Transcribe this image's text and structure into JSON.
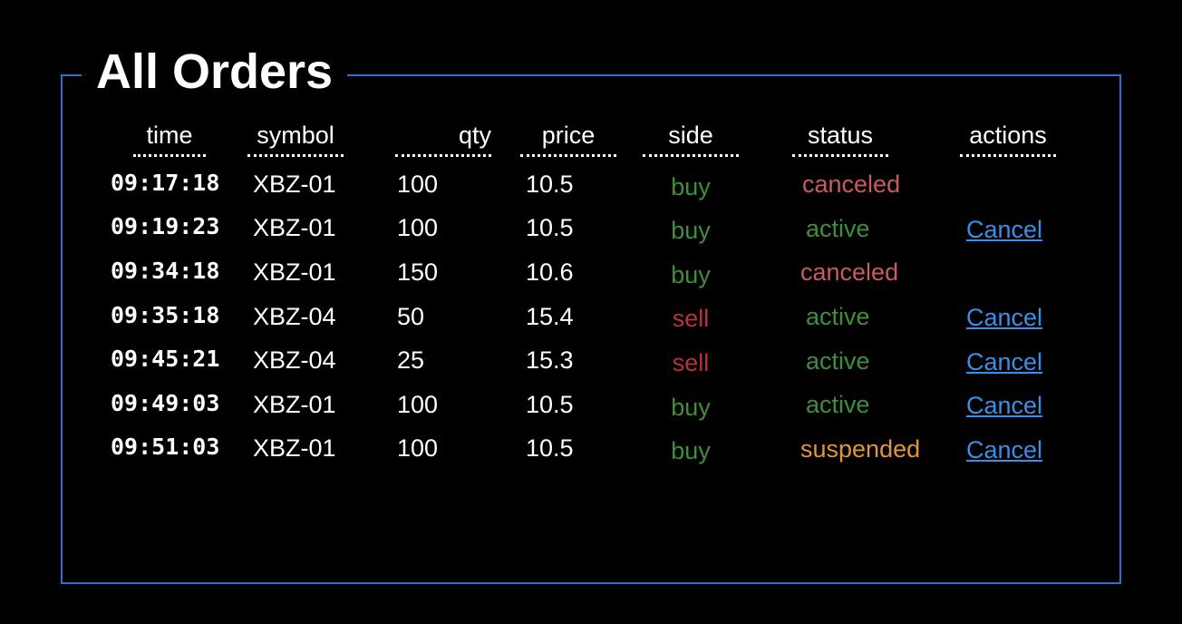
{
  "panel": {
    "title": "All Orders"
  },
  "colors": {
    "border": "#2f6fd0",
    "buy": "#3f8f3a",
    "sell": "#b8323a",
    "canceled": "#c95a5f",
    "active": "#3f8f3a",
    "suspended": "#e0953a",
    "link": "#3b8ee8"
  },
  "table": {
    "columns": [
      "time",
      "symbol",
      "qty",
      "price",
      "side",
      "status",
      "actions"
    ],
    "rows": [
      {
        "time": "09:17:18",
        "symbol": "XBZ-01",
        "qty": "100",
        "price": "10.5",
        "side": "buy",
        "status": "canceled",
        "action": ""
      },
      {
        "time": "09:19:23",
        "symbol": "XBZ-01",
        "qty": "100",
        "price": "10.5",
        "side": "buy",
        "status": "active",
        "action": "Cancel"
      },
      {
        "time": "09:34:18",
        "symbol": "XBZ-01",
        "qty": "150",
        "price": "10.6",
        "side": "buy",
        "status": "canceled",
        "action": ""
      },
      {
        "time": "09:35:18",
        "symbol": "XBZ-04",
        "qty": "50",
        "price": "15.4",
        "side": "sell",
        "status": "active",
        "action": "Cancel"
      },
      {
        "time": "09:45:21",
        "symbol": "XBZ-04",
        "qty": "25",
        "price": "15.3",
        "side": "sell",
        "status": "active",
        "action": "Cancel"
      },
      {
        "time": "09:49:03",
        "symbol": "XBZ-01",
        "qty": "100",
        "price": "10.5",
        "side": "buy",
        "status": "active",
        "action": "Cancel"
      },
      {
        "time": "09:51:03",
        "symbol": "XBZ-01",
        "qty": "100",
        "price": "10.5",
        "side": "buy",
        "status": "suspended",
        "action": "Cancel"
      }
    ]
  }
}
